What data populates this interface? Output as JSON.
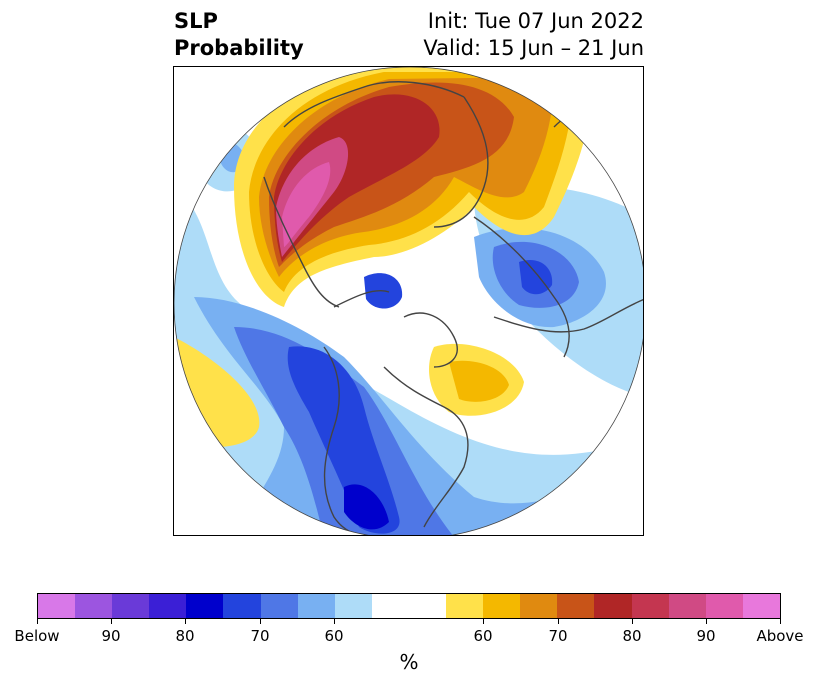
{
  "header": {
    "title_line1": "SLP",
    "title_line2": "Probability",
    "init_text": "Init: Tue 07 Jun 2022",
    "valid_text": "Valid: 15 Jun – 21 Jun"
  },
  "colorbar": {
    "unit": "%",
    "labels": [
      "Below",
      "90",
      "80",
      "70",
      "60",
      "60",
      "70",
      "80",
      "90",
      "Above"
    ],
    "colors": [
      "#d878e8",
      "#9c55e0",
      "#6a3ad8",
      "#3b1fd6",
      "#0000cc",
      "#2344dd",
      "#4f77e6",
      "#78b0f2",
      "#aedcf8",
      "#ffffff",
      "#ffe14a",
      "#f4b800",
      "#e08a10",
      "#c85418",
      "#b02626",
      "#c43650",
      "#d04a84",
      "#e05aac",
      "#e878dc"
    ]
  },
  "map": {
    "colors": {
      "below_strong": "#2344dd",
      "below_mid": "#4f77e6",
      "below_light": "#78b0f2",
      "below_pale": "#aedcf8",
      "above_yellow": "#ffe14a",
      "above_gold": "#f4b800",
      "above_orange": "#e08a10",
      "above_rust": "#c85418",
      "above_red": "#b02626",
      "above_pink": "#d04a84",
      "coast": "#444444"
    }
  }
}
